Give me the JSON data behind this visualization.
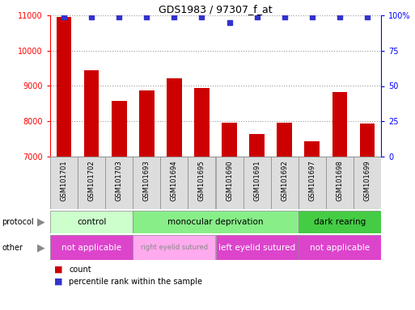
{
  "title": "GDS1983 / 97307_f_at",
  "samples": [
    "GSM101701",
    "GSM101702",
    "GSM101703",
    "GSM101693",
    "GSM101694",
    "GSM101695",
    "GSM101690",
    "GSM101691",
    "GSM101692",
    "GSM101697",
    "GSM101698",
    "GSM101699"
  ],
  "counts": [
    10950,
    9450,
    8580,
    8870,
    9210,
    8940,
    7950,
    7650,
    7970,
    7430,
    8820,
    7930
  ],
  "percentile_ranks": [
    99,
    99,
    99,
    99,
    99,
    99,
    95,
    99,
    99,
    99,
    99,
    99
  ],
  "bar_color": "#cc0000",
  "dot_color": "#3333cc",
  "ylim_left": [
    7000,
    11000
  ],
  "ylim_right": [
    0,
    100
  ],
  "yticks_left": [
    7000,
    8000,
    9000,
    10000,
    11000
  ],
  "yticks_right": [
    0,
    25,
    50,
    75,
    100
  ],
  "ytick_right_labels": [
    "0",
    "25",
    "50",
    "75",
    "100%"
  ],
  "protocol_groups": [
    {
      "label": "control",
      "start": 0,
      "end": 3,
      "color": "#ccffcc"
    },
    {
      "label": "monocular deprivation",
      "start": 3,
      "end": 9,
      "color": "#88ee88"
    },
    {
      "label": "dark rearing",
      "start": 9,
      "end": 12,
      "color": "#44cc44"
    }
  ],
  "other_groups": [
    {
      "label": "not applicable",
      "start": 0,
      "end": 3,
      "color": "#dd44cc"
    },
    {
      "label": "right eyelid sutured",
      "start": 3,
      "end": 6,
      "color": "#ffaaee"
    },
    {
      "label": "left eyelid sutured",
      "start": 6,
      "end": 9,
      "color": "#dd44cc"
    },
    {
      "label": "not applicable",
      "start": 9,
      "end": 12,
      "color": "#dd44cc"
    }
  ],
  "protocol_label": "protocol",
  "other_label": "other",
  "legend_count_label": "count",
  "legend_pct_label": "percentile rank within the sample",
  "bg_color": "#ffffff",
  "grid_color": "#999999",
  "xtick_bg": "#dddddd",
  "xtick_border": "#888888"
}
